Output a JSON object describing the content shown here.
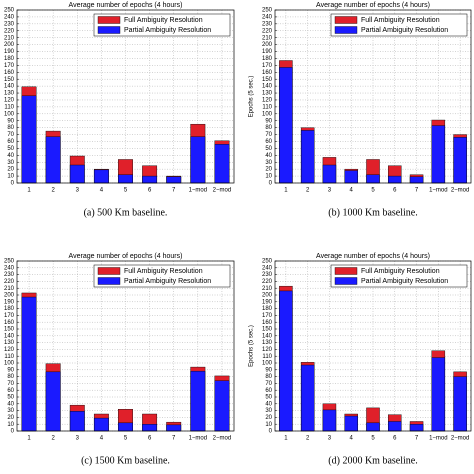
{
  "chart_data": [
    {
      "type": "bar",
      "title": "Average number of epochs (4 hours)",
      "caption": "(a) 500 Km baseline.",
      "categories": [
        "1",
        "2",
        "3",
        "4",
        "5",
        "6",
        "7",
        "1−mod",
        "2−mod"
      ],
      "series": [
        {
          "name": "Full Ambiguity Resolution",
          "color": "#e0202a",
          "values": [
            139,
            75,
            39,
            20,
            34,
            25,
            10,
            85,
            61
          ]
        },
        {
          "name": "Partial Ambiguity Resolution",
          "color": "#1a1aff",
          "values": [
            126,
            67,
            26,
            19,
            12,
            10,
            9,
            67,
            56
          ]
        }
      ],
      "ylim": [
        0,
        250
      ],
      "yticks": [
        0,
        10,
        20,
        30,
        40,
        50,
        60,
        70,
        80,
        90,
        100,
        110,
        120,
        130,
        140,
        150,
        160,
        170,
        180,
        190,
        200,
        210,
        220,
        230,
        240,
        250
      ],
      "grid": true,
      "legend": "upper right"
    },
    {
      "type": "bar",
      "title": "Average number of epochs (4 hours)",
      "caption": "(b) 1000 Km baseline.",
      "ylabel": "Epochs (5 sec.)",
      "categories": [
        "1",
        "2",
        "3",
        "4",
        "5",
        "6",
        "7",
        "1−mod",
        "2−mod"
      ],
      "series": [
        {
          "name": "Full Ambiguity Resolution",
          "color": "#e0202a",
          "values": [
            177,
            80,
            37,
            20,
            34,
            25,
            12,
            91,
            70
          ]
        },
        {
          "name": "Partial Ambiguity Resolution",
          "color": "#1a1aff",
          "values": [
            167,
            76,
            26,
            18,
            12,
            10,
            9,
            83,
            66
          ]
        }
      ],
      "ylim": [
        0,
        250
      ],
      "yticks": [
        0,
        10,
        20,
        30,
        40,
        50,
        60,
        70,
        80,
        90,
        100,
        110,
        120,
        130,
        140,
        150,
        160,
        170,
        180,
        190,
        200,
        210,
        220,
        230,
        240,
        250
      ],
      "grid": true,
      "legend": "upper right"
    },
    {
      "type": "bar",
      "title": "Average number of epochs (4 hours)",
      "caption": "(c) 1500 Km baseline.",
      "categories": [
        "1",
        "2",
        "3",
        "4",
        "5",
        "6",
        "7",
        "1−mod",
        "2−mod"
      ],
      "series": [
        {
          "name": "Full Ambiguity Resolution",
          "color": "#e0202a",
          "values": [
            203,
            99,
            38,
            25,
            32,
            25,
            13,
            94,
            81
          ]
        },
        {
          "name": "Partial Ambiguity Resolution",
          "color": "#1a1aff",
          "values": [
            197,
            87,
            29,
            19,
            12,
            10,
            9,
            88,
            74
          ]
        }
      ],
      "ylim": [
        0,
        250
      ],
      "yticks": [
        0,
        10,
        20,
        30,
        40,
        50,
        60,
        70,
        80,
        90,
        100,
        110,
        120,
        130,
        140,
        150,
        160,
        170,
        180,
        190,
        200,
        210,
        220,
        230,
        240,
        250
      ],
      "grid": true,
      "legend": "upper right"
    },
    {
      "type": "bar",
      "title": "Average number of epochs (4 hours)",
      "caption": "(d) 2000 Km baseline.",
      "ylabel": "Epochs (5 sec.)",
      "categories": [
        "1",
        "2",
        "3",
        "4",
        "5",
        "6",
        "7",
        "1−mod",
        "2−mod"
      ],
      "series": [
        {
          "name": "Full Ambiguity Resolution",
          "color": "#e0202a",
          "values": [
            213,
            101,
            40,
            25,
            34,
            24,
            14,
            118,
            87
          ]
        },
        {
          "name": "Partial Ambiguity Resolution",
          "color": "#1a1aff",
          "values": [
            206,
            97,
            31,
            22,
            12,
            14,
            10,
            108,
            80
          ]
        }
      ],
      "ylim": [
        0,
        250
      ],
      "yticks": [
        0,
        10,
        20,
        30,
        40,
        50,
        60,
        70,
        80,
        90,
        100,
        110,
        120,
        130,
        140,
        150,
        160,
        170,
        180,
        190,
        200,
        210,
        220,
        230,
        240,
        250
      ],
      "grid": true,
      "legend": "upper right"
    }
  ]
}
